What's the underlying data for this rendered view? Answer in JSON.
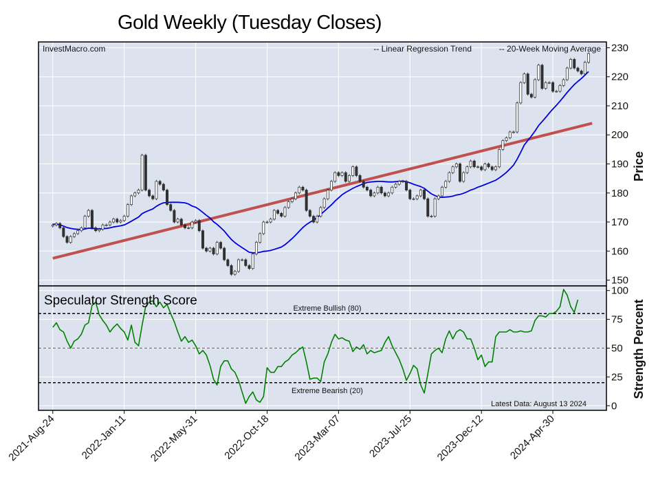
{
  "title": "Gold Weekly (Tuesday Closes)",
  "colors": {
    "background": "#dde3ee",
    "grid": "#ffffff",
    "trend": "#c0504d",
    "moving_average": "#0000dd",
    "strength": "#008000",
    "candle_up": "#ffffff",
    "candle_down": "#333333",
    "legend_trend_text": "#8b0000",
    "legend_ma_text": "#0000cc"
  },
  "price_panel": {
    "watermark": "InvestMacro.com",
    "legend_trend": "-- Linear Regression Trend",
    "legend_ma": "-- 20-Week Moving Average",
    "ylabel": "Price"
  },
  "strength_panel": {
    "title": "Speculator Strength Score",
    "bull_label": "Extreme Bullish (80)",
    "bear_label": "Extreme Bearish (20)",
    "latest_note": "Latest Data: August 13 2024",
    "ylabel": "Strength Percent"
  },
  "chart_data": [
    {
      "type": "candlestick",
      "title": "Gold Weekly (Tuesday Closes)",
      "ylabel": "Price",
      "ylim": [
        148,
        232
      ],
      "yticks": [
        150,
        160,
        170,
        180,
        190,
        200,
        210,
        220,
        230
      ],
      "xlim": [
        -4,
        155
      ],
      "xtick_labels": [
        "2021-Aug-24",
        "2022-Jan-11",
        "2022-May-31",
        "2022-Oct-18",
        "2023-Mar-07",
        "2023-Jul-25",
        "2023-Dec-12",
        "2024-Apr-30"
      ],
      "xtick_index": [
        0,
        20,
        40,
        60,
        80,
        100,
        120,
        140
      ],
      "grid": true,
      "closes": [
        169.0,
        169.5,
        168.0,
        165.0,
        163.0,
        165.0,
        166.0,
        167.0,
        168.0,
        172.0,
        174.0,
        168.0,
        167.0,
        167.5,
        169.0,
        169.0,
        170.0,
        171.0,
        170.0,
        170.5,
        172.0,
        176.0,
        179.0,
        180.0,
        181.0,
        193.0,
        181.0,
        179.0,
        178.0,
        184.0,
        183.0,
        181.0,
        176.0,
        174.0,
        170.0,
        171.0,
        169.0,
        168.0,
        168.0,
        170.0,
        170.5,
        167.0,
        161.0,
        160.0,
        161.0,
        159.0,
        163.0,
        161.0,
        157.0,
        155.0,
        152.0,
        153.0,
        157.0,
        157.0,
        155.0,
        154.0,
        159.0,
        163.0,
        166.0,
        170.0,
        170.0,
        171.0,
        174.0,
        173.0,
        172.0,
        175.0,
        177.0,
        178.0,
        180.0,
        182.0,
        181.0,
        174.0,
        172.0,
        170.0,
        172.0,
        175.0,
        178.0,
        181.0,
        184.0,
        187.0,
        186.0,
        187.0,
        184.0,
        186.0,
        189.0,
        186.0,
        184.0,
        182.0,
        181.0,
        179.0,
        180.0,
        182.0,
        180.0,
        179.0,
        180.0,
        182.0,
        183.0,
        184.0,
        184.0,
        181.0,
        178.0,
        178.0,
        179.0,
        181.0,
        178.0,
        172.0,
        172.0,
        178.0,
        179.0,
        182.0,
        184.0,
        187.0,
        189.0,
        190.0,
        184.0,
        187.0,
        189.0,
        191.0,
        189.0,
        189.0,
        188.0,
        190.0,
        189.0,
        188.0,
        189.0,
        195.0,
        198.0,
        199.0,
        201.0,
        201.0,
        211.0,
        218.0,
        221.0,
        214.0,
        213.0,
        219.0,
        224.0,
        216.0,
        218.0,
        218.0,
        215.0,
        215.0,
        217.0,
        219.0,
        223.0,
        226.0,
        223.0,
        222.0,
        221.0,
        225.0,
        228.0
      ],
      "moving_average": [
        169.2,
        169.3,
        169.0,
        168.6,
        168.1,
        167.8,
        167.6,
        167.5,
        167.4,
        167.6,
        167.9,
        167.8,
        167.7,
        167.6,
        167.7,
        167.8,
        168.0,
        168.3,
        168.5,
        168.7,
        169.0,
        169.6,
        170.3,
        171.0,
        171.7,
        172.9,
        173.5,
        174.0,
        174.5,
        175.4,
        176.1,
        176.6,
        176.7,
        176.8,
        176.8,
        176.8,
        176.7,
        176.6,
        176.2,
        175.5,
        175.1,
        174.3,
        173.3,
        172.3,
        171.4,
        170.1,
        169.2,
        168.1,
        166.9,
        165.4,
        164.0,
        162.9,
        162.0,
        161.2,
        160.4,
        159.6,
        159.4,
        159.4,
        159.6,
        159.9,
        160.0,
        160.2,
        160.6,
        161.0,
        161.4,
        162.2,
        163.2,
        164.3,
        165.5,
        166.8,
        168.1,
        169.1,
        169.9,
        170.7,
        171.5,
        172.6,
        173.7,
        174.8,
        175.9,
        177.2,
        178.3,
        179.4,
        180.2,
        180.9,
        181.6,
        182.2,
        182.7,
        183.2,
        183.6,
        183.8,
        183.9,
        184.0,
        184.0,
        183.9,
        183.8,
        183.8,
        183.9,
        184.0,
        184.1,
        183.9,
        183.5,
        183.0,
        182.6,
        182.2,
        181.6,
        180.6,
        179.7,
        179.1,
        178.6,
        178.5,
        178.6,
        178.7,
        178.9,
        179.3,
        179.5,
        179.9,
        180.4,
        181.0,
        181.4,
        182.0,
        182.4,
        182.9,
        183.4,
        183.9,
        184.4,
        185.2,
        186.1,
        187.1,
        188.3,
        189.6,
        191.6,
        194.0,
        196.5,
        198.1,
        199.6,
        201.3,
        203.2,
        204.6,
        206.0,
        207.5,
        208.9,
        210.2,
        211.6,
        213.1,
        214.6,
        216.0,
        217.3,
        218.4,
        219.4,
        220.6,
        221.8
      ],
      "trend": {
        "start": [
          0,
          157.5
        ],
        "end": [
          151,
          204.0
        ]
      }
    },
    {
      "type": "line",
      "title": "Speculator Strength Score",
      "ylabel": "Strength Percent",
      "ylim": [
        -4,
        104
      ],
      "yticks": [
        0,
        25,
        50,
        75,
        100
      ],
      "reference_lines": [
        {
          "value": 80,
          "label": "Extreme Bullish (80)"
        },
        {
          "value": 50
        },
        {
          "value": 20,
          "label": "Extreme Bearish (20)"
        }
      ],
      "series": [
        {
          "values": [
            68,
            72,
            66,
            64,
            56,
            50,
            56,
            58,
            62,
            70,
            72,
            87,
            90,
            79,
            74,
            70,
            64,
            68,
            71,
            67,
            64,
            57,
            70,
            55,
            52,
            70,
            86,
            90,
            91,
            86,
            90,
            85,
            88,
            80,
            73,
            64,
            56,
            60,
            55,
            57,
            52,
            45,
            48,
            44,
            35,
            23,
            18,
            34,
            39,
            39,
            32,
            29,
            22,
            12,
            2,
            8,
            12,
            5,
            3,
            8,
            33,
            29,
            29,
            34,
            34,
            38,
            40,
            44,
            46,
            49,
            51,
            38,
            23,
            24,
            24,
            21,
            38,
            45,
            55,
            62,
            58,
            59,
            57,
            56,
            47,
            51,
            49,
            53,
            45,
            48,
            46,
            47,
            48,
            55,
            60,
            52,
            46,
            40,
            32,
            22,
            28,
            35,
            32,
            18,
            11,
            28,
            45,
            48,
            50,
            46,
            58,
            65,
            58,
            64,
            66,
            64,
            58,
            58,
            50,
            40,
            44,
            34,
            38,
            38,
            60,
            64,
            64,
            64,
            66,
            64,
            64,
            65,
            64,
            64,
            65,
            74,
            78,
            78,
            77,
            80,
            80,
            82,
            86,
            101,
            96,
            86,
            81,
            92
          ]
        }
      ]
    }
  ]
}
